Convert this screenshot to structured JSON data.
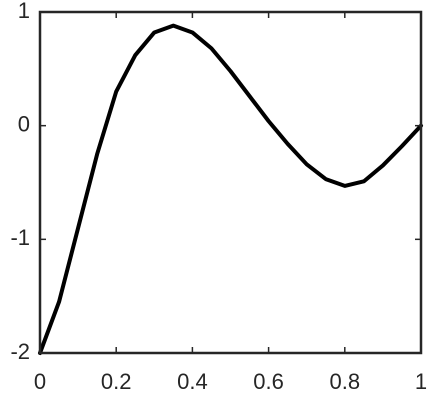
{
  "chart_data": {
    "type": "line",
    "x": [
      0,
      0.05,
      0.1,
      0.15,
      0.2,
      0.25,
      0.3,
      0.35,
      0.4,
      0.45,
      0.5,
      0.55,
      0.6,
      0.65,
      0.7,
      0.75,
      0.8,
      0.85,
      0.9,
      0.95,
      1
    ],
    "values": [
      -2,
      -1.55,
      -0.9,
      -0.25,
      0.3,
      0.62,
      0.82,
      0.88,
      0.82,
      0.68,
      0.48,
      0.26,
      0.04,
      -0.16,
      -0.34,
      -0.47,
      -0.53,
      -0.49,
      -0.35,
      -0.18,
      0
    ],
    "color": "#000000",
    "xlim": [
      0,
      1
    ],
    "xticks": [
      0,
      0.2,
      0.4,
      0.6,
      0.8,
      1
    ],
    "ylim": [
      -2,
      1
    ],
    "yticks": [
      -2,
      -1,
      0,
      1
    ],
    "grid": false
  }
}
